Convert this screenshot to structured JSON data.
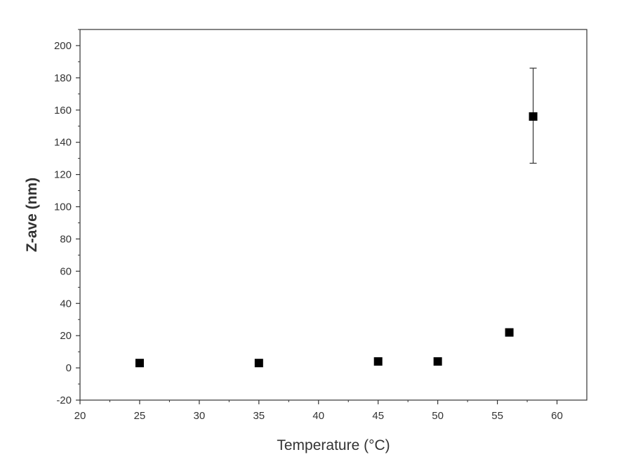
{
  "chart_data": {
    "type": "scatter",
    "xlabel": "Temperature (°C)",
    "ylabel": "Z-ave (nm)",
    "xlim": [
      20,
      62.5
    ],
    "ylim": [
      -20,
      210
    ],
    "x_ticks": [
      20,
      25,
      30,
      35,
      40,
      45,
      50,
      55,
      60
    ],
    "y_ticks": [
      -20,
      0,
      20,
      40,
      60,
      80,
      100,
      120,
      140,
      160,
      180,
      200
    ],
    "grid": false,
    "marker": "square",
    "marker_color": "#000000",
    "points": [
      {
        "x": 25,
        "y": 3
      },
      {
        "x": 35,
        "y": 3
      },
      {
        "x": 45,
        "y": 4
      },
      {
        "x": 50,
        "y": 4
      },
      {
        "x": 56,
        "y": 22
      },
      {
        "x": 58,
        "y": 156,
        "err_low": 127,
        "err_high": 186
      }
    ]
  }
}
